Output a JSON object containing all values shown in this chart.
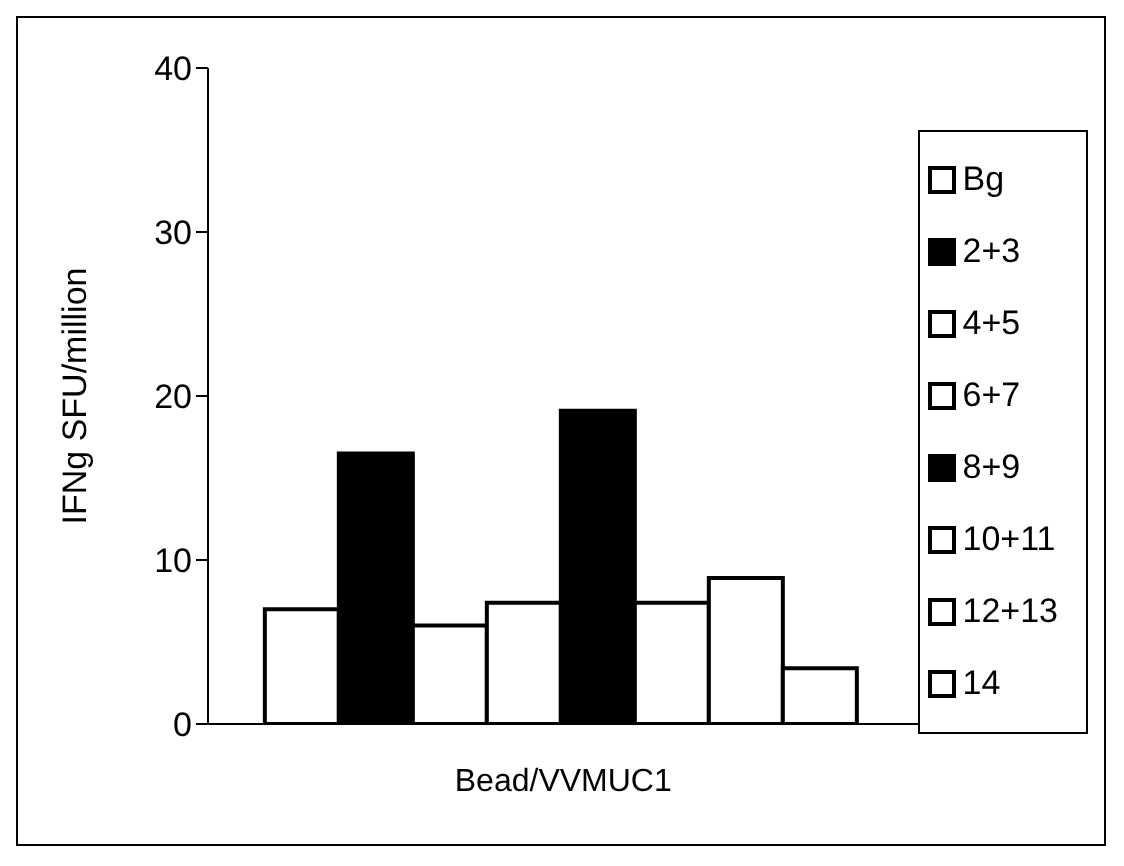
{
  "chart_data": {
    "type": "bar",
    "ylabel": "IFNg SFU/million",
    "categories": [
      "Bead/VVMUC1"
    ],
    "series": [
      {
        "name": "Bg",
        "color": "#ffffff",
        "values": [
          7
        ]
      },
      {
        "name": "2+3",
        "color": "#000000",
        "values": [
          16.5
        ]
      },
      {
        "name": "4+5",
        "color": "#ffffff",
        "values": [
          6
        ]
      },
      {
        "name": "6+7",
        "color": "#ffffff",
        "values": [
          7.4
        ]
      },
      {
        "name": "8+9",
        "color": "#000000",
        "values": [
          19.1
        ]
      },
      {
        "name": "10+11",
        "color": "#ffffff",
        "values": [
          7.4
        ]
      },
      {
        "name": "12+13",
        "color": "#ffffff",
        "values": [
          8.9
        ]
      },
      {
        "name": "14",
        "color": "#ffffff",
        "values": [
          3.4
        ]
      }
    ],
    "ylim": [
      0,
      40
    ],
    "yticks": [
      0,
      10,
      20,
      30,
      40
    ],
    "grid": false,
    "legend": "right"
  }
}
